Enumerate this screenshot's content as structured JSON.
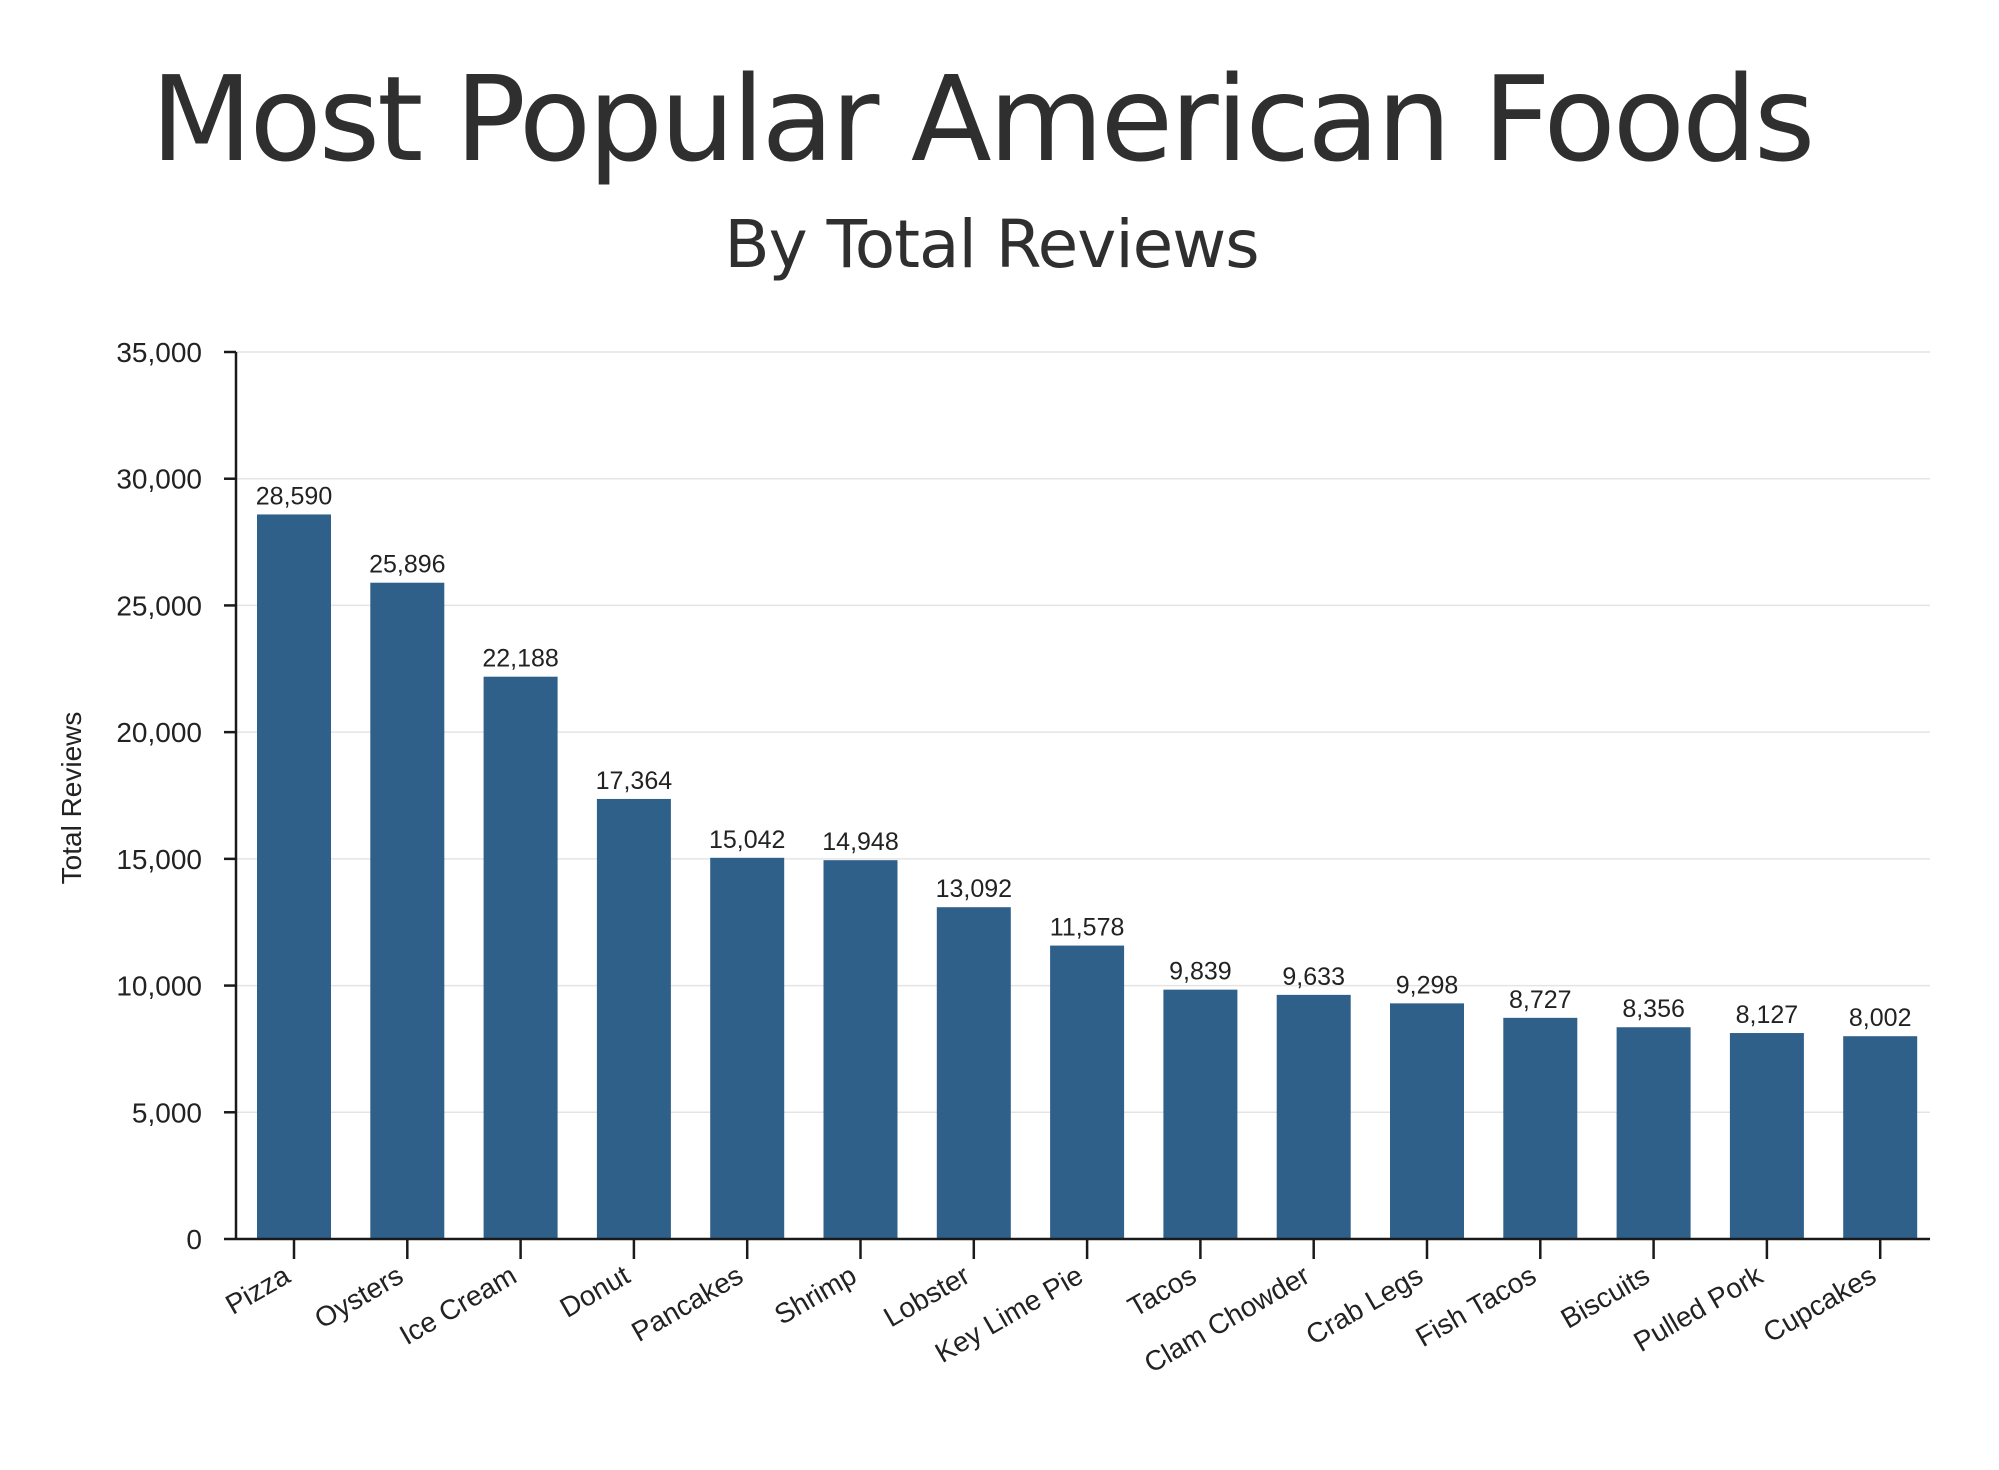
{
  "colors": {
    "bar": "#2f6089",
    "text": "#2f2f2f",
    "grid": "#e4e4e4",
    "axis": "#1a1a1a"
  },
  "chart_data": {
    "type": "bar",
    "title": "Most Popular American Foods",
    "subtitle": "By Total Reviews",
    "xlabel": "",
    "ylabel": "Total Reviews",
    "ylim": [
      0,
      35000
    ],
    "yticks": [
      0,
      5000,
      10000,
      15000,
      20000,
      25000,
      30000,
      35000
    ],
    "ytick_labels": [
      "0",
      "5,000",
      "10,000",
      "15,000",
      "20,000",
      "25,000",
      "30,000",
      "35,000"
    ],
    "grid": true,
    "legend": "none",
    "categories": [
      "Pizza",
      "Oysters",
      "Ice Cream",
      "Donut",
      "Pancakes",
      "Shrimp",
      "Lobster",
      "Key Lime Pie",
      "Tacos",
      "Clam Chowder",
      "Crab Legs",
      "Fish Tacos",
      "Biscuits",
      "Pulled Pork",
      "Cupcakes"
    ],
    "values": [
      28590,
      25896,
      22188,
      17364,
      15042,
      14948,
      13092,
      11578,
      9839,
      9633,
      9298,
      8727,
      8356,
      8127,
      8002
    ],
    "value_labels": [
      "28,590",
      "25,896",
      "22,188",
      "17,364",
      "15,042",
      "14,948",
      "13,092",
      "11,578",
      "9,839",
      "9,633",
      "9,298",
      "8,727",
      "8,356",
      "8,127",
      "8,002"
    ]
  }
}
